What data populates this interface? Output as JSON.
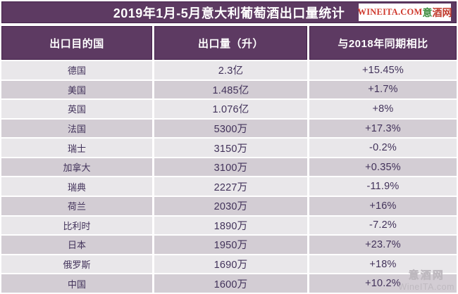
{
  "title": "2019年1月-5月意大利葡萄酒出口量统计",
  "logo": {
    "latin": "WINEITA.COM",
    "cn_green": "意",
    "cn_red": "酒网"
  },
  "table": {
    "headers": [
      "出口目的国",
      "出口量（升）",
      "与2018年同期相比"
    ],
    "rows": [
      {
        "country": "德国",
        "volume": "2.3亿",
        "change": "+15.45%"
      },
      {
        "country": "美国",
        "volume": "1.485亿",
        "change": "+1.7%"
      },
      {
        "country": "英国",
        "volume": "1.076亿",
        "change": "+8%"
      },
      {
        "country": "法国",
        "volume": "5300万",
        "change": "+17.3%"
      },
      {
        "country": "瑞士",
        "volume": "3150万",
        "change": "-0.2%"
      },
      {
        "country": "加拿大",
        "volume": "3100万",
        "change": "+0.35%"
      },
      {
        "country": "瑞典",
        "volume": "2227万",
        "change": "-11.9%"
      },
      {
        "country": "荷兰",
        "volume": "2030万",
        "change": "+16%"
      },
      {
        "country": "比利时",
        "volume": "1890万",
        "change": "-7.2%"
      },
      {
        "country": "日本",
        "volume": "1950万",
        "change": "+23.7%"
      },
      {
        "country": "俄罗斯",
        "volume": "1690万",
        "change": "+18%"
      },
      {
        "country": "中国",
        "volume": "1600万",
        "change": "+10.2%"
      }
    ]
  },
  "watermark": {
    "line1": "意酒网",
    "line2": "WineITA.com"
  },
  "colors": {
    "header_purple": "#5d3a62",
    "header_border": "#44214a",
    "row_light": "#e9e7ea",
    "row_dark": "#d3cdd4",
    "cell_text": "#42325a",
    "logo_red": "#cf3a2e",
    "logo_green": "#3d8b3d"
  },
  "chart_data": {
    "type": "table",
    "title": "2019年1月-5月意大利葡萄酒出口量统计",
    "columns": [
      "出口目的国",
      "出口量（升）",
      "与2018年同期相比"
    ],
    "categories": [
      "德国",
      "美国",
      "英国",
      "法国",
      "瑞士",
      "加拿大",
      "瑞典",
      "荷兰",
      "比利时",
      "日本",
      "俄罗斯",
      "中国"
    ],
    "series": [
      {
        "name": "出口量（升）",
        "display": [
          "2.3亿",
          "1.485亿",
          "1.076亿",
          "5300万",
          "3150万",
          "3100万",
          "2227万",
          "2030万",
          "1890万",
          "1950万",
          "1690万",
          "1600万"
        ],
        "values": [
          230000000,
          148500000,
          107600000,
          53000000,
          31500000,
          31000000,
          22270000,
          20300000,
          18900000,
          19500000,
          16900000,
          16000000
        ]
      },
      {
        "name": "与2018年同期相比(%)",
        "display": [
          "+15.45%",
          "+1.7%",
          "+8%",
          "+17.3%",
          "-0.2%",
          "+0.35%",
          "-11.9%",
          "+16%",
          "-7.2%",
          "+23.7%",
          "+18%",
          "+10.2%"
        ],
        "values": [
          15.45,
          1.7,
          8,
          17.3,
          -0.2,
          0.35,
          -11.9,
          16,
          -7.2,
          23.7,
          18,
          10.2
        ]
      }
    ]
  }
}
